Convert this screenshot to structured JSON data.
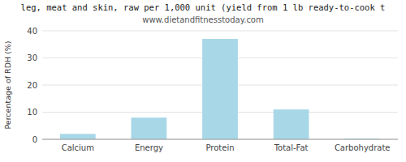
{
  "chart_data": {
    "type": "bar",
    "title": "leg, meat and skin, raw per 1,000 unit (yield from 1 lb ready-to-cook t",
    "subtitle": "www.dietandfitnesstoday.com",
    "categories": [
      "Calcium",
      "Energy",
      "Protein",
      "Total-Fat",
      "Carbohydrate"
    ],
    "values": [
      2.0,
      8.0,
      37.0,
      11.0,
      0.3
    ],
    "color": "#a8d8e8",
    "ylabel": "Percentage of RDH (%)",
    "ylim": [
      0,
      40
    ],
    "yticks": [
      0,
      10,
      20,
      30,
      40
    ],
    "grid": true
  }
}
